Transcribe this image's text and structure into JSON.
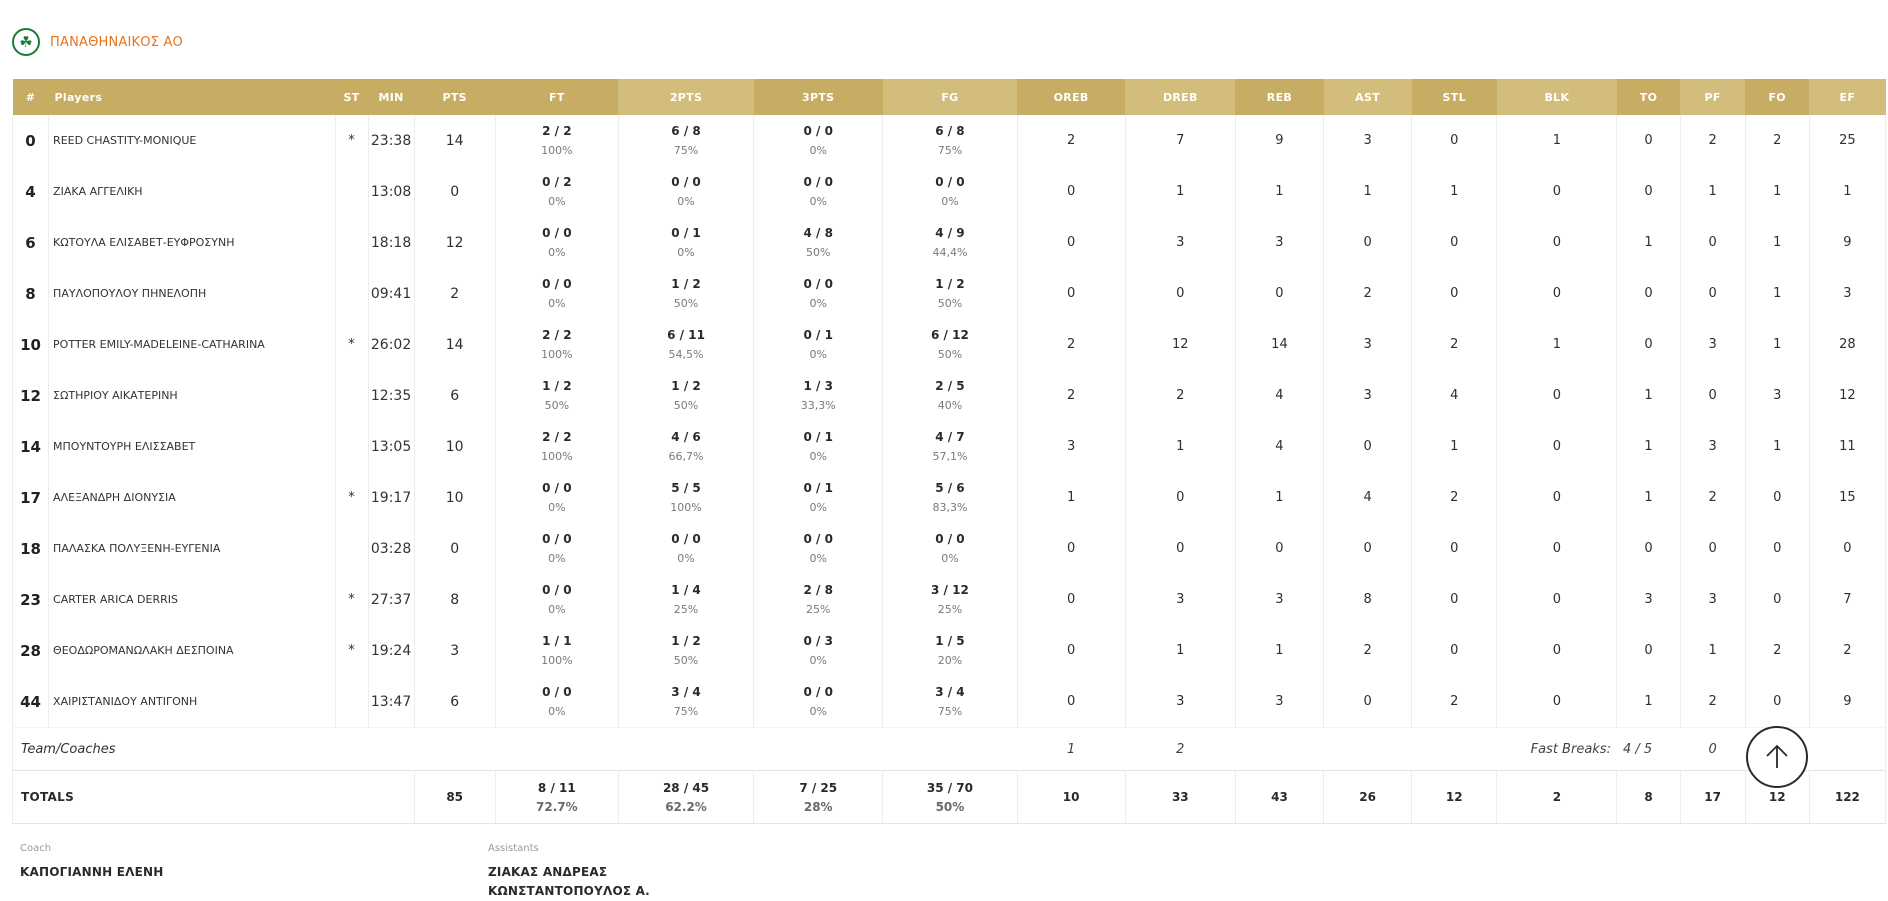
{
  "team": {
    "name": "ΠΑΝΑΘΗΝΑΙΚΟΣ ΑΟ",
    "logo_icon": "shamrock-icon",
    "accent_color": "#e8731b",
    "logo_color": "#1b7a3a"
  },
  "header_colors": {
    "primary": "#c7ad63",
    "alternate": "#d3bd7c"
  },
  "columns": {
    "num": "#",
    "players": "Players",
    "st": "ST",
    "min": "MIN",
    "pts": "PTS",
    "ft": "FT",
    "pts2": "2PTS",
    "pts3": "3PTS",
    "fg": "FG",
    "oreb": "OREB",
    "dreb": "DREB",
    "reb": "REB",
    "ast": "AST",
    "stl": "STL",
    "blk": "BLK",
    "to": "TO",
    "pf": "PF",
    "fo": "FO",
    "ef": "EF"
  },
  "players": [
    {
      "num": "0",
      "name": "REED CHASTITY-MONIQUE",
      "st": "*",
      "min": "23:38",
      "pts": "14",
      "ft": "2 / 2",
      "ft_pct": "100%",
      "p2": "6 / 8",
      "p2_pct": "75%",
      "p3": "0 / 0",
      "p3_pct": "0%",
      "fg": "6 / 8",
      "fg_pct": "75%",
      "oreb": "2",
      "dreb": "7",
      "reb": "9",
      "ast": "3",
      "stl": "0",
      "blk": "1",
      "to": "0",
      "pf": "2",
      "fo": "2",
      "ef": "25"
    },
    {
      "num": "4",
      "name": "ΖΙΑΚΑ ΑΓΓΕΛΙΚΗ",
      "st": "",
      "min": "13:08",
      "pts": "0",
      "ft": "0 / 2",
      "ft_pct": "0%",
      "p2": "0 / 0",
      "p2_pct": "0%",
      "p3": "0 / 0",
      "p3_pct": "0%",
      "fg": "0 / 0",
      "fg_pct": "0%",
      "oreb": "0",
      "dreb": "1",
      "reb": "1",
      "ast": "1",
      "stl": "1",
      "blk": "0",
      "to": "0",
      "pf": "1",
      "fo": "1",
      "ef": "1"
    },
    {
      "num": "6",
      "name": "ΚΩΤΟΥΛΑ ΕΛΙΣΑΒΕΤ-ΕΥΦΡΟΣΥΝΗ",
      "st": "",
      "min": "18:18",
      "pts": "12",
      "ft": "0 / 0",
      "ft_pct": "0%",
      "p2": "0 / 1",
      "p2_pct": "0%",
      "p3": "4 / 8",
      "p3_pct": "50%",
      "fg": "4 / 9",
      "fg_pct": "44,4%",
      "oreb": "0",
      "dreb": "3",
      "reb": "3",
      "ast": "0",
      "stl": "0",
      "blk": "0",
      "to": "1",
      "pf": "0",
      "fo": "1",
      "ef": "9"
    },
    {
      "num": "8",
      "name": "ΠΑΥΛΟΠΟΥΛΟΥ ΠΗΝΕΛΟΠΗ",
      "st": "",
      "min": "09:41",
      "pts": "2",
      "ft": "0 / 0",
      "ft_pct": "0%",
      "p2": "1 / 2",
      "p2_pct": "50%",
      "p3": "0 / 0",
      "p3_pct": "0%",
      "fg": "1 / 2",
      "fg_pct": "50%",
      "oreb": "0",
      "dreb": "0",
      "reb": "0",
      "ast": "2",
      "stl": "0",
      "blk": "0",
      "to": "0",
      "pf": "0",
      "fo": "1",
      "ef": "3"
    },
    {
      "num": "10",
      "name": "POTTER EMILY-MADELEINE-CATHARINA",
      "st": "*",
      "min": "26:02",
      "pts": "14",
      "ft": "2 / 2",
      "ft_pct": "100%",
      "p2": "6 / 11",
      "p2_pct": "54,5%",
      "p3": "0 / 1",
      "p3_pct": "0%",
      "fg": "6 / 12",
      "fg_pct": "50%",
      "oreb": "2",
      "dreb": "12",
      "reb": "14",
      "ast": "3",
      "stl": "2",
      "blk": "1",
      "to": "0",
      "pf": "3",
      "fo": "1",
      "ef": "28"
    },
    {
      "num": "12",
      "name": "ΣΩΤΗΡΙΟΥ ΑΙΚΑΤΕΡΙΝΗ",
      "st": "",
      "min": "12:35",
      "pts": "6",
      "ft": "1 / 2",
      "ft_pct": "50%",
      "p2": "1 / 2",
      "p2_pct": "50%",
      "p3": "1 / 3",
      "p3_pct": "33,3%",
      "fg": "2 / 5",
      "fg_pct": "40%",
      "oreb": "2",
      "dreb": "2",
      "reb": "4",
      "ast": "3",
      "stl": "4",
      "blk": "0",
      "to": "1",
      "pf": "0",
      "fo": "3",
      "ef": "12"
    },
    {
      "num": "14",
      "name": "ΜΠΟΥΝΤΟΥΡΗ ΕΛΙΣΣΑΒΕΤ",
      "st": "",
      "min": "13:05",
      "pts": "10",
      "ft": "2 / 2",
      "ft_pct": "100%",
      "p2": "4 / 6",
      "p2_pct": "66,7%",
      "p3": "0 / 1",
      "p3_pct": "0%",
      "fg": "4 / 7",
      "fg_pct": "57,1%",
      "oreb": "3",
      "dreb": "1",
      "reb": "4",
      "ast": "0",
      "stl": "1",
      "blk": "0",
      "to": "1",
      "pf": "3",
      "fo": "1",
      "ef": "11"
    },
    {
      "num": "17",
      "name": "ΑΛΕΞΑΝΔΡΗ ΔΙΟΝΥΣΙΑ",
      "st": "*",
      "min": "19:17",
      "pts": "10",
      "ft": "0 / 0",
      "ft_pct": "0%",
      "p2": "5 / 5",
      "p2_pct": "100%",
      "p3": "0 / 1",
      "p3_pct": "0%",
      "fg": "5 / 6",
      "fg_pct": "83,3%",
      "oreb": "1",
      "dreb": "0",
      "reb": "1",
      "ast": "4",
      "stl": "2",
      "blk": "0",
      "to": "1",
      "pf": "2",
      "fo": "0",
      "ef": "15"
    },
    {
      "num": "18",
      "name": "ΠΑΛΑΣΚΑ ΠΟΛΥΞΕΝΗ-ΕΥΓΕΝΙΑ",
      "st": "",
      "min": "03:28",
      "pts": "0",
      "ft": "0 / 0",
      "ft_pct": "0%",
      "p2": "0 / 0",
      "p2_pct": "0%",
      "p3": "0 / 0",
      "p3_pct": "0%",
      "fg": "0 / 0",
      "fg_pct": "0%",
      "oreb": "0",
      "dreb": "0",
      "reb": "0",
      "ast": "0",
      "stl": "0",
      "blk": "0",
      "to": "0",
      "pf": "0",
      "fo": "0",
      "ef": "0"
    },
    {
      "num": "23",
      "name": "CARTER ARICA DERRIS",
      "st": "*",
      "min": "27:37",
      "pts": "8",
      "ft": "0 / 0",
      "ft_pct": "0%",
      "p2": "1 / 4",
      "p2_pct": "25%",
      "p3": "2 / 8",
      "p3_pct": "25%",
      "fg": "3 / 12",
      "fg_pct": "25%",
      "oreb": "0",
      "dreb": "3",
      "reb": "3",
      "ast": "8",
      "stl": "0",
      "blk": "0",
      "to": "3",
      "pf": "3",
      "fo": "0",
      "ef": "7"
    },
    {
      "num": "28",
      "name": "ΘΕΟΔΩΡΟΜΑΝΩΛΑΚΗ ΔΕΣΠΟΙΝΑ",
      "st": "*",
      "min": "19:24",
      "pts": "3",
      "ft": "1 / 1",
      "ft_pct": "100%",
      "p2": "1 / 2",
      "p2_pct": "50%",
      "p3": "0 / 3",
      "p3_pct": "0%",
      "fg": "1 / 5",
      "fg_pct": "20%",
      "oreb": "0",
      "dreb": "1",
      "reb": "1",
      "ast": "2",
      "stl": "0",
      "blk": "0",
      "to": "0",
      "pf": "1",
      "fo": "2",
      "ef": "2"
    },
    {
      "num": "44",
      "name": "ΧΑΙΡΙΣΤΑΝΙΔΟΥ ΑΝΤΙΓΟΝΗ",
      "st": "",
      "min": "13:47",
      "pts": "6",
      "ft": "0 / 0",
      "ft_pct": "0%",
      "p2": "3 / 4",
      "p2_pct": "75%",
      "p3": "0 / 0",
      "p3_pct": "0%",
      "fg": "3 / 4",
      "fg_pct": "75%",
      "oreb": "0",
      "dreb": "3",
      "reb": "3",
      "ast": "0",
      "stl": "2",
      "blk": "0",
      "to": "1",
      "pf": "2",
      "fo": "0",
      "ef": "9"
    }
  ],
  "team_row": {
    "label": "Team/Coaches",
    "oreb": "1",
    "dreb": "2",
    "fast_breaks_label": "Fast Breaks:",
    "fast_breaks_value": "4 / 5",
    "to": "0",
    "pf": "0"
  },
  "totals": {
    "label": "TOTALS",
    "pts": "85",
    "ft": "8 / 11",
    "ft_pct": "72.7%",
    "p2": "28 / 45",
    "p2_pct": "62.2%",
    "p3": "7 / 25",
    "p3_pct": "28%",
    "fg": "35 / 70",
    "fg_pct": "50%",
    "oreb": "10",
    "dreb": "33",
    "reb": "43",
    "ast": "26",
    "stl": "12",
    "blk": "2",
    "to": "8",
    "pf": "17",
    "fo": "12",
    "ef": "122"
  },
  "coach": {
    "label": "Coach",
    "name": "ΚΑΠΟΓΙΑΝΝΗ ΕΛΕΝΗ"
  },
  "assistants": {
    "label": "Assistants",
    "names": [
      "ΖΙΑΚΑΣ ΑΝΔΡΕΑΣ",
      "ΚΩΝΣΤΑΝΤΟΠΟΥΛΟΣ Α."
    ]
  },
  "scroll_top": {
    "icon": "arrow-up-icon"
  }
}
